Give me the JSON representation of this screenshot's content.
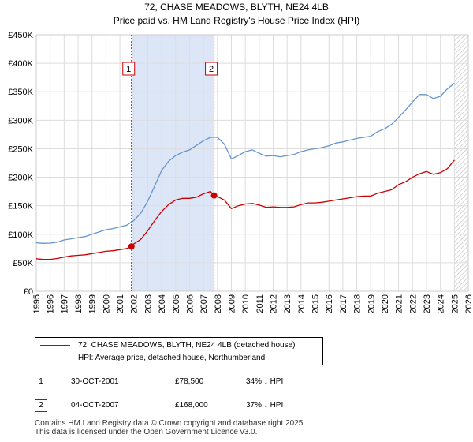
{
  "chart_data": {
    "type": "line",
    "title": "72, CHASE MEADOWS, BLYTH, NE24 4LB",
    "subtitle": "Price paid vs. HM Land Registry's House Price Index (HPI)",
    "xlim": [
      1995,
      2026
    ],
    "ylim": [
      0,
      450000
    ],
    "y_ticks": [
      0,
      50000,
      100000,
      150000,
      200000,
      250000,
      300000,
      350000,
      400000,
      450000
    ],
    "y_tick_labels": [
      "£0",
      "£50K",
      "£100K",
      "£150K",
      "£200K",
      "£250K",
      "£300K",
      "£350K",
      "£400K",
      "£450K"
    ],
    "x_tick_labels": [
      "1995",
      "1996",
      "1997",
      "1998",
      "1999",
      "2000",
      "2001",
      "2002",
      "2003",
      "2004",
      "2005",
      "2006",
      "2007",
      "2008",
      "2009",
      "2010",
      "2011",
      "2012",
      "2013",
      "2014",
      "2015",
      "2016",
      "2017",
      "2018",
      "2019",
      "2020",
      "2021",
      "2022",
      "2023",
      "2024",
      "2025",
      "2026"
    ],
    "grid": true,
    "legend_position": "below",
    "colors": {
      "property": "#cc0000",
      "hpi": "#6495cd",
      "shade": "#dde6f7",
      "grid": "#dddddd",
      "marker": "#cc0000"
    },
    "series": [
      {
        "name": "72, CHASE MEADOWS, BLYTH, NE24 4LB (detached house)",
        "x": [
          1995.0,
          1995.5,
          1996.0,
          1996.5,
          1997.0,
          1997.5,
          1998.0,
          1998.5,
          1999.0,
          1999.5,
          2000.0,
          2000.5,
          2001.0,
          2001.5,
          2001.83,
          2002.0,
          2002.5,
          2003.0,
          2003.5,
          2004.0,
          2004.5,
          2005.0,
          2005.5,
          2006.0,
          2006.5,
          2007.0,
          2007.5,
          2007.76,
          2008.0,
          2008.5,
          2009.0,
          2009.5,
          2010.0,
          2010.5,
          2011.0,
          2011.5,
          2012.0,
          2012.5,
          2013.0,
          2013.5,
          2014.0,
          2014.5,
          2015.0,
          2015.5,
          2016.0,
          2016.5,
          2017.0,
          2017.5,
          2018.0,
          2018.5,
          2019.0,
          2019.5,
          2020.0,
          2020.5,
          2021.0,
          2021.5,
          2022.0,
          2022.5,
          2023.0,
          2023.5,
          2024.0,
          2024.5,
          2025.0
        ],
        "values": [
          57000,
          56000,
          56000,
          57500,
          60000,
          62000,
          63000,
          64000,
          66000,
          68000,
          70000,
          71000,
          73000,
          75000,
          78500,
          83000,
          91000,
          106000,
          124000,
          140000,
          152000,
          160000,
          163000,
          163000,
          165000,
          171000,
          175000,
          168000,
          166000,
          160000,
          145000,
          150000,
          153000,
          154000,
          151000,
          147000,
          148000,
          147000,
          147000,
          148000,
          152000,
          155000,
          155000,
          156000,
          158000,
          160000,
          162000,
          164000,
          166000,
          167000,
          167000,
          172000,
          175000,
          178000,
          187000,
          192000,
          200000,
          206000,
          210000,
          205000,
          208000,
          215000,
          230000
        ]
      },
      {
        "name": "HPI: Average price, detached house, Northumberland",
        "x": [
          1995.0,
          1995.5,
          1996.0,
          1996.5,
          1997.0,
          1997.5,
          1998.0,
          1998.5,
          1999.0,
          1999.5,
          2000.0,
          2000.5,
          2001.0,
          2001.5,
          2002.0,
          2002.5,
          2003.0,
          2003.5,
          2004.0,
          2004.5,
          2005.0,
          2005.5,
          2006.0,
          2006.5,
          2007.0,
          2007.5,
          2008.0,
          2008.5,
          2009.0,
          2009.5,
          2010.0,
          2010.5,
          2011.0,
          2011.5,
          2012.0,
          2012.5,
          2013.0,
          2013.5,
          2014.0,
          2014.5,
          2015.0,
          2015.5,
          2016.0,
          2016.5,
          2017.0,
          2017.5,
          2018.0,
          2018.5,
          2019.0,
          2019.5,
          2020.0,
          2020.5,
          2021.0,
          2021.5,
          2022.0,
          2022.5,
          2023.0,
          2023.5,
          2024.0,
          2024.5,
          2025.0
        ],
        "values": [
          85000,
          84000,
          84500,
          86000,
          90000,
          92000,
          94000,
          96000,
          100000,
          104000,
          108000,
          110000,
          113000,
          116000,
          124000,
          137000,
          158000,
          185000,
          212000,
          228000,
          238000,
          244000,
          248000,
          256000,
          264000,
          270000,
          270000,
          258000,
          232000,
          238000,
          245000,
          248000,
          242000,
          237000,
          238000,
          236000,
          238000,
          240000,
          245000,
          248000,
          250000,
          252000,
          255000,
          260000,
          262000,
          265000,
          268000,
          270000,
          272000,
          280000,
          285000,
          293000,
          305000,
          318000,
          332000,
          345000,
          345000,
          338000,
          342000,
          355000,
          365000
        ]
      }
    ],
    "shaded_region": [
      2001.83,
      2007.76
    ],
    "sales": [
      {
        "label": "1",
        "x": 2001.83,
        "y": 78500
      },
      {
        "label": "2",
        "x": 2007.76,
        "y": 168000
      }
    ],
    "hatched_after": 2025.0
  },
  "legend": {
    "property_label": "72, CHASE MEADOWS, BLYTH, NE24 4LB (detached house)",
    "hpi_label": "HPI: Average price, detached house, Northumberland"
  },
  "transactions": [
    {
      "num": "1",
      "date": "30-OCT-2001",
      "price": "£78,500",
      "hpi": "34% ↓ HPI"
    },
    {
      "num": "2",
      "date": "04-OCT-2007",
      "price": "£168,000",
      "hpi": "37% ↓ HPI"
    }
  ],
  "footer": {
    "line1": "Contains HM Land Registry data © Crown copyright and database right 2025.",
    "line2": "This data is licensed under the Open Government Licence v3.0."
  }
}
